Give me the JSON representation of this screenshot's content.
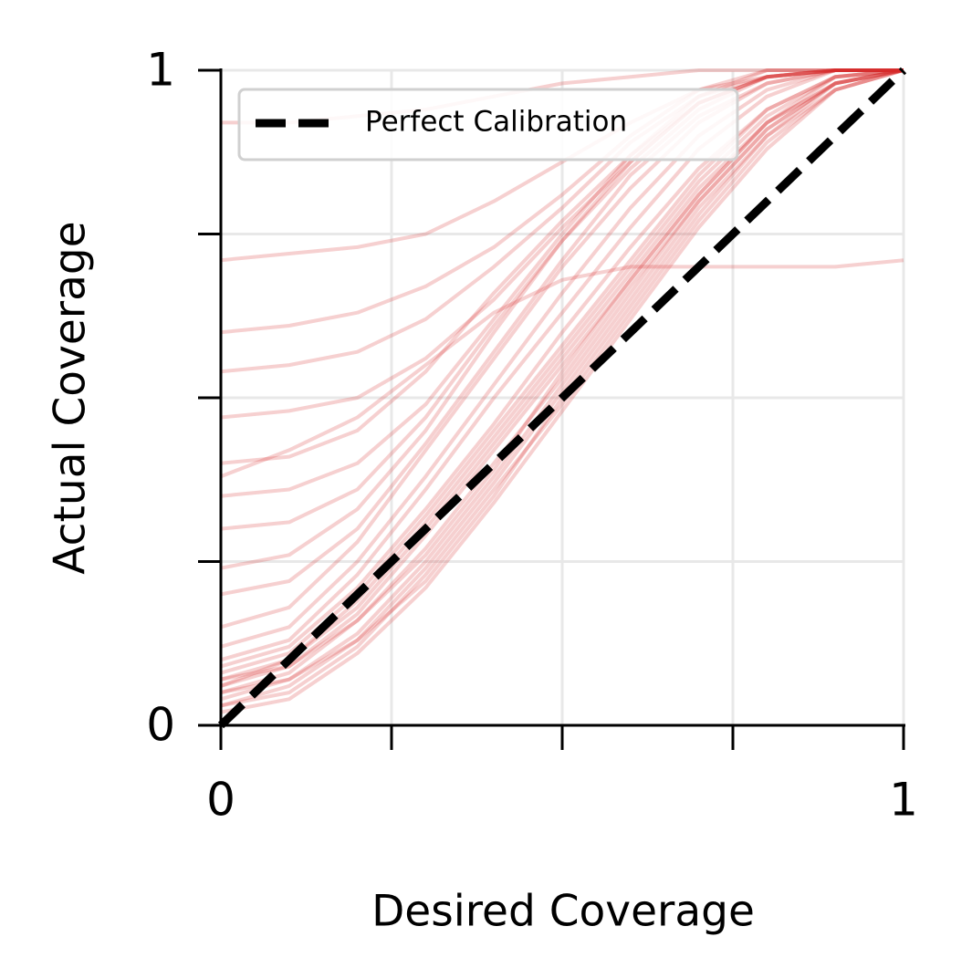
{
  "chart_data": {
    "type": "line",
    "xlabel": "Desired Coverage",
    "ylabel": "Actual Coverage",
    "x": [
      0,
      0.1,
      0.2,
      0.3,
      0.4,
      0.5,
      0.6,
      0.7,
      0.8,
      0.9,
      1
    ],
    "xlim": [
      0,
      1
    ],
    "ylim": [
      0,
      1
    ],
    "xticks": [
      0,
      {
        "value": 0.25,
        "label": null
      },
      {
        "value": 0.5,
        "label": null
      },
      {
        "value": 0.75,
        "label": null
      },
      1
    ],
    "yticks": [
      0,
      {
        "value": 0.25,
        "label": null
      },
      {
        "value": 0.5,
        "label": null
      },
      {
        "value": 0.75,
        "label": null
      },
      1
    ],
    "grid": true,
    "legend_loc": "upper left",
    "series": [
      {
        "color": "#d62728",
        "values": [
          0.05,
          0.08,
          0.16,
          0.27,
          0.4,
          0.53,
          0.67,
          0.8,
          0.91,
          0.98,
          1
        ]
      },
      {
        "color": "#d62728",
        "values": [
          0.03,
          0.06,
          0.13,
          0.24,
          0.37,
          0.51,
          0.65,
          0.79,
          0.9,
          0.98,
          1
        ]
      },
      {
        "color": "#d62728",
        "values": [
          0.07,
          0.1,
          0.19,
          0.31,
          0.44,
          0.57,
          0.7,
          0.83,
          0.93,
          0.99,
          1
        ]
      },
      {
        "color": "#d62728",
        "values": [
          0.02,
          0.04,
          0.11,
          0.21,
          0.34,
          0.48,
          0.62,
          0.76,
          0.88,
          0.97,
          1
        ]
      },
      {
        "color": "#d62728",
        "values": [
          0.09,
          0.12,
          0.21,
          0.33,
          0.46,
          0.6,
          0.73,
          0.85,
          0.94,
          0.99,
          1
        ]
      },
      {
        "color": "#d62728",
        "values": [
          0.06,
          0.09,
          0.17,
          0.29,
          0.42,
          0.55,
          0.68,
          0.81,
          0.92,
          0.98,
          1
        ]
      },
      {
        "color": "#d62728",
        "values": [
          0.04,
          0.07,
          0.14,
          0.25,
          0.38,
          0.52,
          0.66,
          0.8,
          0.91,
          0.98,
          1
        ]
      },
      {
        "color": "#d62728",
        "values": [
          0.08,
          0.11,
          0.2,
          0.32,
          0.45,
          0.58,
          0.71,
          0.84,
          0.94,
          0.99,
          1
        ]
      },
      {
        "color": "#d62728",
        "values": [
          0.05,
          0.07,
          0.13,
          0.22,
          0.35,
          0.5,
          0.64,
          0.78,
          0.9,
          0.97,
          1
        ]
      },
      {
        "color": "#d62728",
        "values": [
          0.1,
          0.13,
          0.23,
          0.36,
          0.5,
          0.63,
          0.76,
          0.88,
          0.96,
          1,
          1
        ]
      },
      {
        "color": "#d62728",
        "values": [
          0.06,
          0.1,
          0.18,
          0.3,
          0.43,
          0.56,
          0.69,
          0.82,
          0.92,
          0.98,
          1
        ]
      },
      {
        "color": "#d62728",
        "values": [
          0.03,
          0.05,
          0.12,
          0.23,
          0.36,
          0.49,
          0.63,
          0.77,
          0.89,
          0.97,
          1
        ]
      },
      {
        "color": "#d62728",
        "values": [
          0.12,
          0.15,
          0.25,
          0.38,
          0.52,
          0.66,
          0.79,
          0.9,
          0.97,
          1,
          1
        ]
      },
      {
        "color": "#d62728",
        "values": [
          0.07,
          0.09,
          0.16,
          0.26,
          0.39,
          0.54,
          0.68,
          0.81,
          0.92,
          0.99,
          1
        ]
      },
      {
        "color": "#d62728",
        "values": [
          0.15,
          0.18,
          0.28,
          0.42,
          0.56,
          0.7,
          0.82,
          0.92,
          0.98,
          1,
          1
        ]
      },
      {
        "color": "#d62728",
        "values": [
          0.2,
          0.22,
          0.3,
          0.43,
          0.57,
          0.71,
          0.84,
          0.93,
          0.98,
          1,
          1
        ]
      },
      {
        "color": "#d62728",
        "values": [
          0.24,
          0.26,
          0.33,
          0.45,
          0.6,
          0.74,
          0.86,
          0.95,
          0.99,
          1,
          1
        ]
      },
      {
        "color": "#d62728",
        "values": [
          0.3,
          0.31,
          0.36,
          0.47,
          0.61,
          0.74,
          0.85,
          0.94,
          0.99,
          1,
          1
        ]
      },
      {
        "color": "#d62728",
        "values": [
          0.35,
          0.36,
          0.4,
          0.49,
          0.62,
          0.75,
          0.87,
          0.96,
          0.99,
          1,
          1
        ]
      },
      {
        "color": "#d62728",
        "values": [
          0.4,
          0.41,
          0.45,
          0.54,
          0.66,
          0.77,
          0.87,
          0.95,
          0.99,
          1,
          1
        ]
      },
      {
        "color": "#d62728",
        "values": [
          0.47,
          0.48,
          0.5,
          0.56,
          0.65,
          0.76,
          0.86,
          0.95,
          0.99,
          1,
          1
        ]
      },
      {
        "color": "#d62728",
        "values": [
          0.54,
          0.55,
          0.57,
          0.62,
          0.7,
          0.79,
          0.89,
          0.96,
          1,
          1,
          1
        ]
      },
      {
        "color": "#d62728",
        "values": [
          0.6,
          0.61,
          0.63,
          0.67,
          0.73,
          0.81,
          0.9,
          0.97,
          1,
          1,
          1
        ]
      },
      {
        "color": "#d62728",
        "values": [
          0.38,
          0.42,
          0.47,
          0.55,
          0.63,
          0.68,
          0.7,
          0.7,
          0.7,
          0.7,
          0.71
        ]
      },
      {
        "color": "#d62728",
        "values": [
          0.71,
          0.72,
          0.73,
          0.75,
          0.8,
          0.86,
          0.92,
          0.97,
          0.99,
          1,
          1
        ]
      },
      {
        "color": "#d62728",
        "values": [
          0.92,
          0.92,
          0.93,
          0.94,
          0.96,
          0.98,
          0.99,
          1,
          1,
          1,
          1
        ]
      },
      {
        "name": "Perfect Calibration",
        "color": "#000000",
        "dashed": true,
        "values": [
          0,
          0.1,
          0.2,
          0.3,
          0.4,
          0.5,
          0.6,
          0.7,
          0.8,
          0.9,
          1
        ]
      }
    ]
  }
}
